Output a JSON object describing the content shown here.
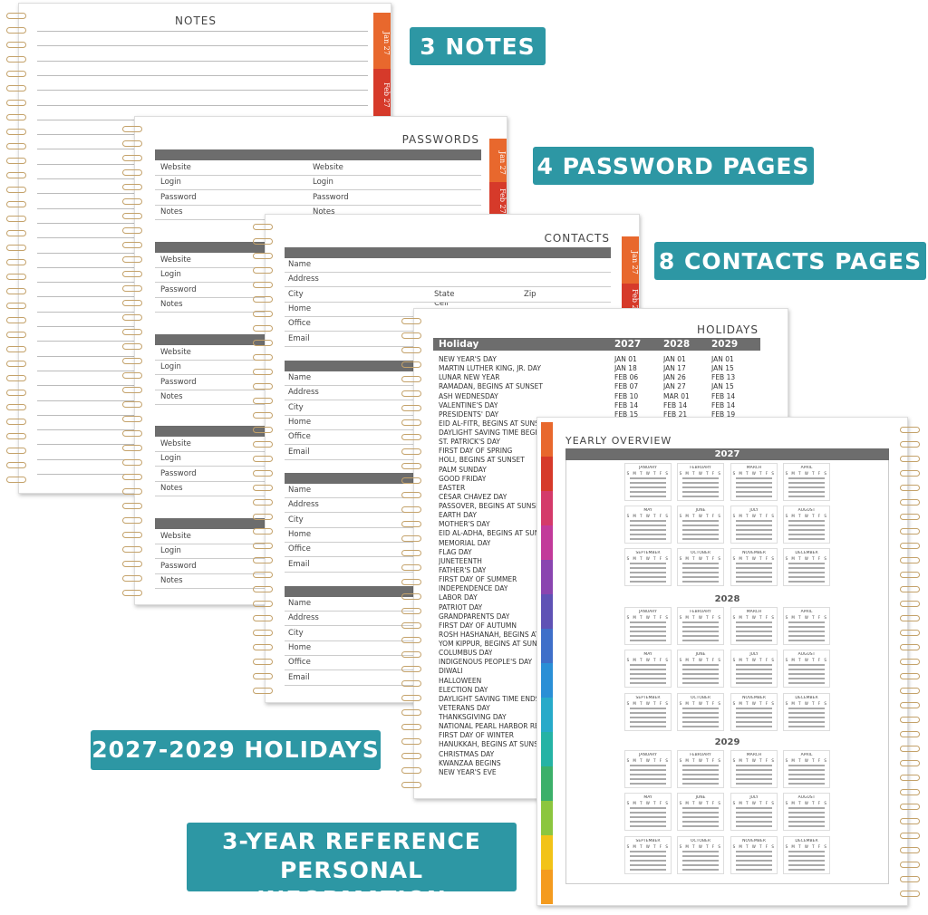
{
  "callouts": [
    [
      "3 NOTES"
    ],
    [
      "4 PASSWORD PAGES"
    ],
    [
      "8 CONTACTS PAGES"
    ],
    [
      "2027-2029 HOLIDAYS"
    ],
    [
      "3-YEAR REFERENCE",
      "PERSONAL INFORMATION"
    ]
  ],
  "tabs": [
    "Jan 27",
    "Feb 27"
  ],
  "notes": {
    "title": "NOTES"
  },
  "passwords": {
    "title": "PASSWORDS",
    "fields": [
      "Website",
      "Login",
      "Password",
      "Notes"
    ]
  },
  "contacts": {
    "title": "CONTACTS",
    "fields": [
      "Name",
      "Address",
      "City",
      "Home",
      "Office",
      "Email"
    ],
    "state": "State",
    "zip": "Zip",
    "cell": "Cell"
  },
  "holidays": {
    "title": "HOLIDAYS",
    "header": [
      "Holiday",
      "2027",
      "2028",
      "2029"
    ],
    "rows": [
      [
        "NEW YEAR'S DAY",
        "JAN 01",
        "JAN 01",
        "JAN 01"
      ],
      [
        "MARTIN LUTHER KING, JR. DAY",
        "JAN 18",
        "JAN 17",
        "JAN 15"
      ],
      [
        "LUNAR NEW YEAR",
        "FEB 06",
        "JAN 26",
        "FEB 13"
      ],
      [
        "RAMADAN, BEGINS AT SUNSET",
        "FEB 07",
        "JAN 27",
        "JAN 15"
      ],
      [
        "ASH WEDNESDAY",
        "FEB 10",
        "MAR 01",
        "FEB 14"
      ],
      [
        "VALENTINE'S DAY",
        "FEB 14",
        "FEB 14",
        "FEB 14"
      ],
      [
        "PRESIDENTS' DAY",
        "FEB 15",
        "FEB 21",
        "FEB 19"
      ],
      [
        "EID AL-FITR, BEGINS AT SUNSET"
      ],
      [
        "DAYLIGHT SAVING TIME BEGINS"
      ],
      [
        "ST. PATRICK'S DAY"
      ],
      [
        "FIRST DAY OF SPRING"
      ],
      [
        "HOLI, BEGINS AT SUNSET"
      ],
      [
        "PALM SUNDAY"
      ],
      [
        "GOOD FRIDAY"
      ],
      [
        "EASTER"
      ],
      [
        "CÉSAR CHÁVEZ DAY"
      ],
      [
        "PASSOVER, BEGINS AT SUNSET"
      ],
      [
        "EARTH DAY"
      ],
      [
        "MOTHER'S DAY"
      ],
      [
        "EID AL-ADHA, BEGINS AT SUNSET"
      ],
      [
        "MEMORIAL DAY"
      ],
      [
        "FLAG DAY"
      ],
      [
        "JUNETEENTH"
      ],
      [
        "FATHER'S DAY"
      ],
      [
        "FIRST DAY OF SUMMER"
      ],
      [
        "INDEPENDENCE DAY"
      ],
      [
        "LABOR DAY"
      ],
      [
        "PATRIOT DAY"
      ],
      [
        "GRANDPARENTS DAY"
      ],
      [
        "FIRST DAY OF AUTUMN"
      ],
      [
        "ROSH HASHANAH, BEGINS AT SUNSET"
      ],
      [
        "YOM KIPPUR, BEGINS AT SUNSET"
      ],
      [
        "COLUMBUS DAY"
      ],
      [
        "INDIGENOUS PEOPLE'S DAY"
      ],
      [
        "DIWALI"
      ],
      [
        "HALLOWEEN"
      ],
      [
        "ELECTION DAY"
      ],
      [
        "DAYLIGHT SAVING TIME ENDS"
      ],
      [
        "VETERANS DAY"
      ],
      [
        "THANKSGIVING DAY"
      ],
      [
        "NATIONAL PEARL HARBOR REMEMBRANCE DAY"
      ],
      [
        "FIRST DAY OF WINTER"
      ],
      [
        "HANUKKAH, BEGINS AT SUNSET"
      ],
      [
        "CHRISTMAS DAY"
      ],
      [
        "KWANZAA BEGINS"
      ],
      [
        "NEW YEAR'S EVE"
      ]
    ]
  },
  "yearly": {
    "title": "YEARLY OVERVIEW",
    "years": [
      "2027",
      "2028",
      "2029"
    ],
    "months": [
      "JANUARY",
      "FEBRUARY",
      "MARCH",
      "APRIL",
      "MAY",
      "JUNE",
      "JULY",
      "AUGUST",
      "SEPTEMBER",
      "OCTOBER",
      "NOVEMBER",
      "DECEMBER"
    ],
    "weekdays": "S M T W T F S"
  }
}
